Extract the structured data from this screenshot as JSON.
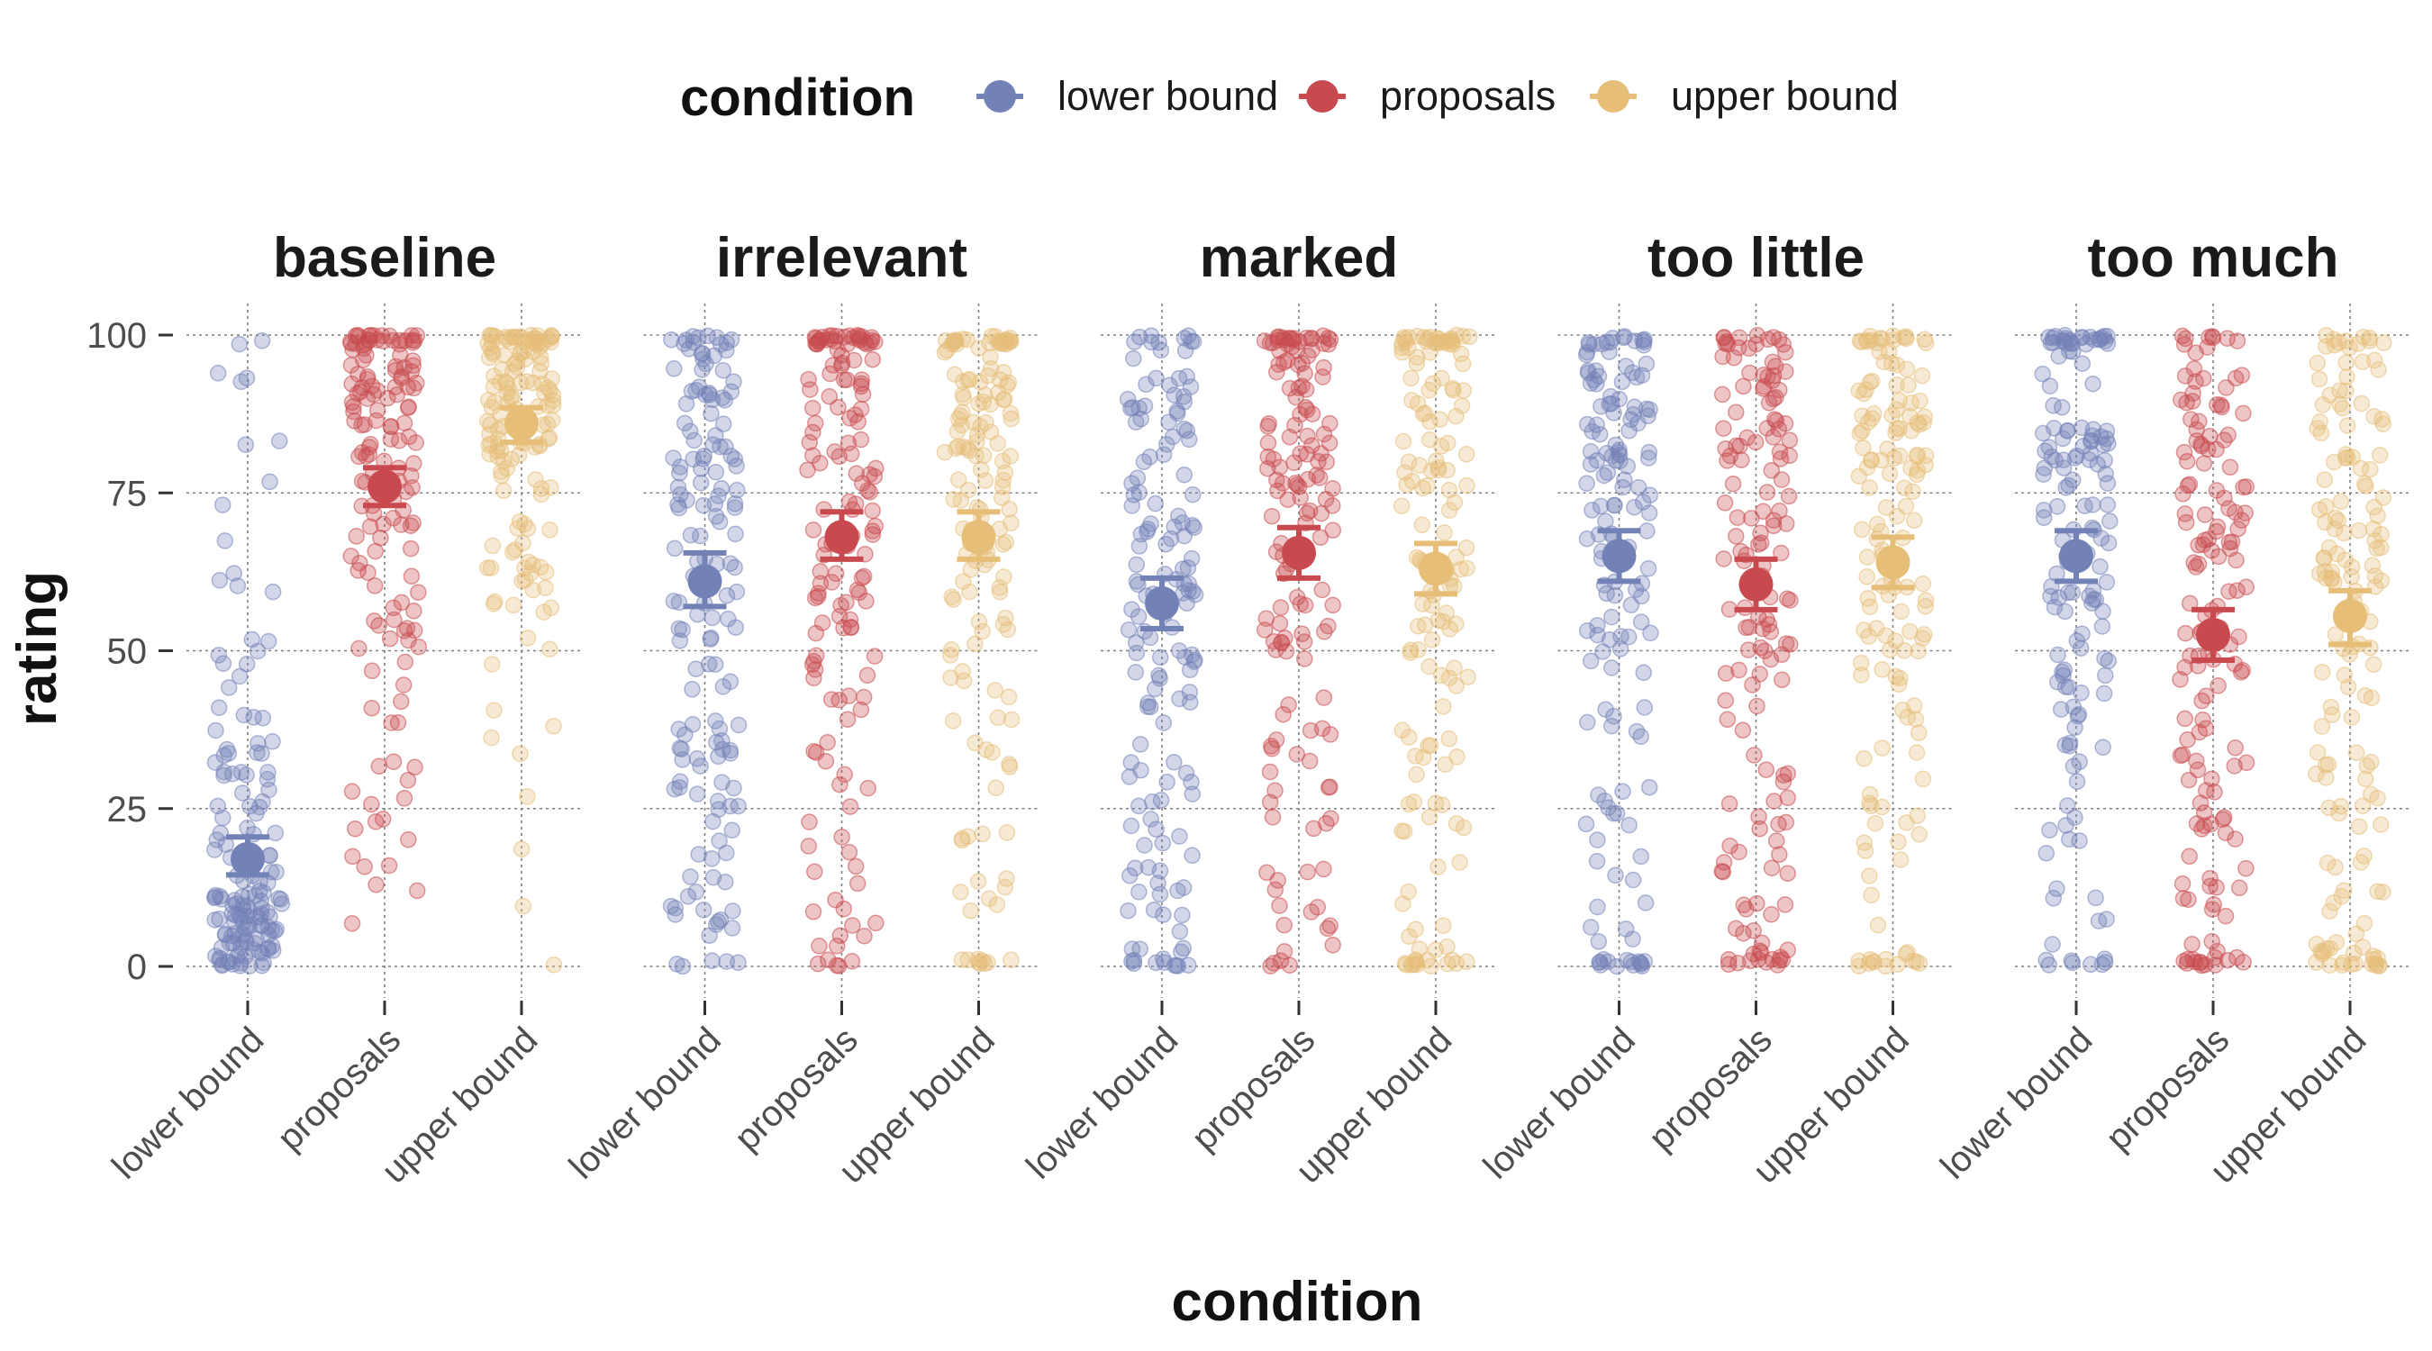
{
  "chart_data": {
    "type": "scatter",
    "subtype": "jittered strip plot with mean and confidence-interval markers, faceted",
    "legend": {
      "title": "condition",
      "position": "top",
      "entries": [
        "lower bound",
        "proposals",
        "upper bound"
      ]
    },
    "colors": {
      "lower bound": "#7281b6",
      "proposals": "#c84a4f",
      "upper bound": "#e6be78"
    },
    "xlabel": "condition",
    "ylabel": "rating",
    "ylim": [
      0,
      100
    ],
    "yticks": [
      0,
      25,
      50,
      75,
      100
    ],
    "categories": [
      "lower bound",
      "proposals",
      "upper bound"
    ],
    "grid": "dotted major gridlines",
    "facets": [
      {
        "title": "baseline",
        "series": [
          {
            "name": "lower bound",
            "mean": 17,
            "ci": [
              14.5,
              20.5
            ],
            "point_bands": [
              [
                0,
                12,
                0.55
              ],
              [
                12,
                40,
                0.3
              ],
              [
                40,
                62,
                0.08
              ],
              [
                62,
                100,
                0.07
              ]
            ],
            "n_points": 150
          },
          {
            "name": "proposals",
            "mean": 76,
            "ci": [
              73,
              79
            ],
            "point_bands": [
              [
                6,
                50,
                0.16
              ],
              [
                50,
                80,
                0.3
              ],
              [
                80,
                100,
                0.54
              ]
            ],
            "n_points": 150
          },
          {
            "name": "upper bound",
            "mean": 86,
            "ci": [
              83,
              88.5
            ],
            "point_bands": [
              [
                0,
                50,
                0.06
              ],
              [
                50,
                80,
                0.24
              ],
              [
                80,
                100,
                0.7
              ]
            ],
            "n_points": 150
          }
        ]
      },
      {
        "title": "irrelevant",
        "series": [
          {
            "name": "lower bound",
            "mean": 61,
            "ci": [
              57,
              65.5
            ],
            "point_bands": [
              [
                0,
                25,
                0.18
              ],
              [
                25,
                55,
                0.25
              ],
              [
                55,
                80,
                0.25
              ],
              [
                80,
                100,
                0.32
              ]
            ],
            "n_points": 150
          },
          {
            "name": "proposals",
            "mean": 68,
            "ci": [
              64.5,
              72
            ],
            "point_bands": [
              [
                0,
                40,
                0.2
              ],
              [
                40,
                65,
                0.22
              ],
              [
                65,
                100,
                0.58
              ]
            ],
            "n_points": 150
          },
          {
            "name": "upper bound",
            "mean": 68,
            "ci": [
              64.5,
              72
            ],
            "point_bands": [
              [
                0,
                40,
                0.2
              ],
              [
                40,
                70,
                0.22
              ],
              [
                70,
                100,
                0.58
              ]
            ],
            "n_points": 150
          }
        ]
      },
      {
        "title": "marked",
        "series": [
          {
            "name": "lower bound",
            "mean": 57.5,
            "ci": [
              53.5,
              61.5
            ],
            "point_bands": [
              [
                0,
                30,
                0.27
              ],
              [
                30,
                55,
                0.2
              ],
              [
                55,
                80,
                0.28
              ],
              [
                80,
                100,
                0.25
              ]
            ],
            "n_points": 150
          },
          {
            "name": "proposals",
            "mean": 65.5,
            "ci": [
              61.5,
              69.5
            ],
            "point_bands": [
              [
                0,
                50,
                0.26
              ],
              [
                50,
                75,
                0.24
              ],
              [
                75,
                100,
                0.5
              ]
            ],
            "n_points": 150
          },
          {
            "name": "upper bound",
            "mean": 63,
            "ci": [
              59,
              67
            ],
            "point_bands": [
              [
                0,
                45,
                0.3
              ],
              [
                45,
                75,
                0.25
              ],
              [
                75,
                100,
                0.45
              ]
            ],
            "n_points": 150
          }
        ]
      },
      {
        "title": "too little",
        "series": [
          {
            "name": "lower bound",
            "mean": 65,
            "ci": [
              61,
              69
            ],
            "point_bands": [
              [
                0,
                50,
                0.3
              ],
              [
                50,
                80,
                0.3
              ],
              [
                80,
                100,
                0.4
              ]
            ],
            "n_points": 150
          },
          {
            "name": "proposals",
            "mean": 60.5,
            "ci": [
              56.5,
              64.5
            ],
            "point_bands": [
              [
                0,
                50,
                0.38
              ],
              [
                50,
                80,
                0.27
              ],
              [
                80,
                100,
                0.35
              ]
            ],
            "n_points": 150
          },
          {
            "name": "upper bound",
            "mean": 64,
            "ci": [
              60,
              68
            ],
            "point_bands": [
              [
                0,
                50,
                0.3
              ],
              [
                50,
                80,
                0.3
              ],
              [
                80,
                100,
                0.4
              ]
            ],
            "n_points": 150
          }
        ]
      },
      {
        "title": "too much",
        "series": [
          {
            "name": "lower bound",
            "mean": 65,
            "ci": [
              61,
              69
            ],
            "point_bands": [
              [
                0,
                50,
                0.3
              ],
              [
                50,
                80,
                0.3
              ],
              [
                80,
                100,
                0.4
              ]
            ],
            "n_points": 150
          },
          {
            "name": "proposals",
            "mean": 52.5,
            "ci": [
              48.5,
              56.5
            ],
            "point_bands": [
              [
                0,
                50,
                0.45
              ],
              [
                50,
                80,
                0.3
              ],
              [
                80,
                100,
                0.25
              ]
            ],
            "n_points": 150
          },
          {
            "name": "upper bound",
            "mean": 55.5,
            "ci": [
              51,
              59.5
            ],
            "point_bands": [
              [
                0,
                50,
                0.42
              ],
              [
                50,
                80,
                0.33
              ],
              [
                80,
                100,
                0.25
              ]
            ],
            "n_points": 150
          }
        ]
      }
    ]
  }
}
